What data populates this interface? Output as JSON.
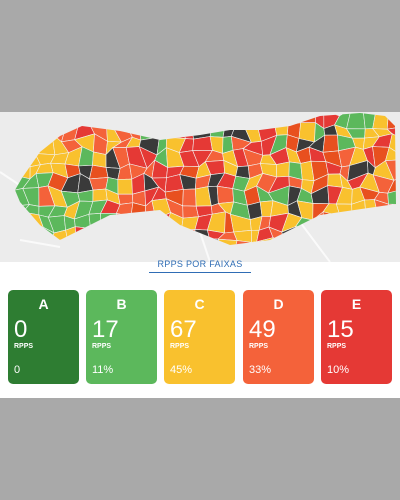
{
  "title": "RPPS POR FAIXAS",
  "cards": [
    {
      "letter": "A",
      "count": 0,
      "unit": "RPPS",
      "share": "0"
    },
    {
      "letter": "B",
      "count": 17,
      "unit": "RPPS",
      "share": "11%"
    },
    {
      "letter": "C",
      "count": 67,
      "unit": "RPPS",
      "share": "45%"
    },
    {
      "letter": "D",
      "count": 49,
      "unit": "RPPS",
      "share": "33%"
    },
    {
      "letter": "E",
      "count": 15,
      "unit": "RPPS",
      "share": "10%"
    }
  ]
}
